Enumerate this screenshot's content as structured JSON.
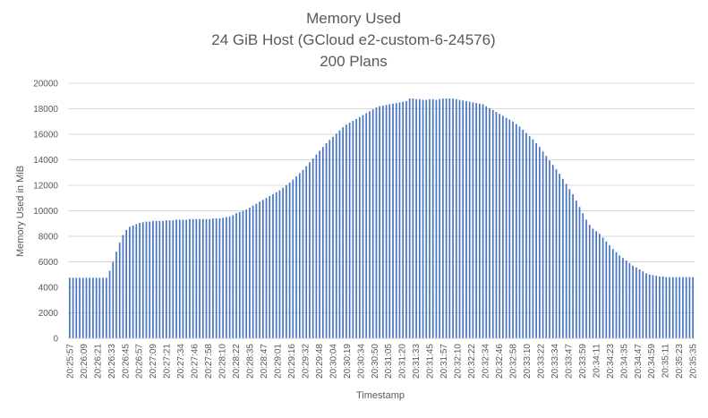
{
  "chart_data": {
    "type": "bar",
    "title_lines": [
      "Memory Used",
      "24 GiB Host (GCloud e2-custom-6-24576)",
      "200 Plans"
    ],
    "xlabel": "Timestamp",
    "ylabel": "Memory Used in MiB",
    "ylim": [
      0,
      20000
    ],
    "yticks": [
      0,
      2000,
      4000,
      6000,
      8000,
      10000,
      12000,
      14000,
      16000,
      18000,
      20000
    ],
    "grid": true,
    "legend": "none",
    "bar_color": "#4472C4",
    "x_tick_labels": [
      "20:25:57",
      "20:26:09",
      "20:26:21",
      "20:26:33",
      "20:26:45",
      "20:26:57",
      "20:27:09",
      "20:27:21",
      "20:27:34",
      "20:27:46",
      "20:27:58",
      "20:28:10",
      "20:28:22",
      "20:28:35",
      "20:28:47",
      "20:29:01",
      "20:29:16",
      "20:29:32",
      "20:29:48",
      "20:30:04",
      "20:30:19",
      "20:30:34",
      "20:30:50",
      "20:31:05",
      "20:31:20",
      "20:31:33",
      "20:31:45",
      "20:31:57",
      "20:32:10",
      "20:32:22",
      "20:32:34",
      "20:32:46",
      "20:32:58",
      "20:33:10",
      "20:33:22",
      "20:33:34",
      "20:33:47",
      "20:33:59",
      "20:34:11",
      "20:34:23",
      "20:34:35",
      "20:34:47",
      "20:34:59",
      "20:35:11",
      "20:35:23",
      "20:35:35"
    ],
    "values": [
      4750,
      4750,
      4750,
      4750,
      4750,
      4750,
      4750,
      4750,
      4750,
      4750,
      4750,
      4750,
      5300,
      6000,
      6800,
      7500,
      8100,
      8500,
      8750,
      8850,
      8950,
      9050,
      9100,
      9150,
      9150,
      9200,
      9200,
      9200,
      9200,
      9250,
      9250,
      9250,
      9300,
      9300,
      9300,
      9300,
      9350,
      9350,
      9350,
      9350,
      9350,
      9350,
      9350,
      9400,
      9400,
      9400,
      9450,
      9500,
      9550,
      9650,
      9800,
      9900,
      10000,
      10100,
      10250,
      10400,
      10550,
      10700,
      10850,
      11000,
      11150,
      11300,
      11450,
      11600,
      11800,
      12000,
      12200,
      12450,
      12700,
      12950,
      13200,
      13500,
      13800,
      14100,
      14400,
      14700,
      15000,
      15300,
      15550,
      15800,
      16050,
      16300,
      16550,
      16750,
      16900,
      17050,
      17200,
      17350,
      17500,
      17650,
      17800,
      17950,
      18100,
      18200,
      18250,
      18300,
      18350,
      18400,
      18450,
      18500,
      18550,
      18600,
      18800,
      18800,
      18750,
      18750,
      18700,
      18700,
      18750,
      18750,
      18700,
      18750,
      18800,
      18800,
      18800,
      18800,
      18750,
      18700,
      18650,
      18600,
      18550,
      18500,
      18450,
      18400,
      18350,
      18200,
      18050,
      17900,
      17750,
      17600,
      17450,
      17300,
      17150,
      17000,
      16800,
      16600,
      16350,
      16100,
      15850,
      15600,
      15300,
      15000,
      14650,
      14300,
      13950,
      13600,
      13250,
      12900,
      12500,
      12100,
      11700,
      11300,
      10800,
      10300,
      9800,
      9300,
      8900,
      8600,
      8400,
      8200,
      7900,
      7600,
      7300,
      7000,
      6750,
      6500,
      6300,
      6100,
      5900,
      5700,
      5550,
      5400,
      5250,
      5100,
      5000,
      4950,
      4900,
      4850,
      4850,
      4800,
      4800,
      4800,
      4800,
      4800,
      4800,
      4800,
      4800,
      4800
    ]
  }
}
